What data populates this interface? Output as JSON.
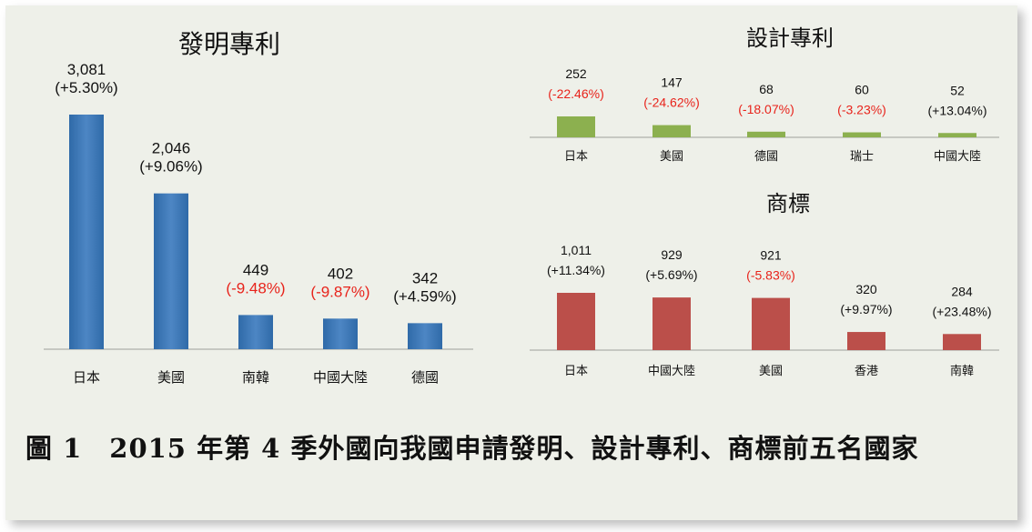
{
  "caption": "圖 1　2015 年第 4 季外國向我國申請發明、設計專利、商標前五名國家",
  "colors": {
    "invention_bar": "#3c74b1",
    "design_bar": "#8cb04f",
    "trademark_bar": "#bb4f4a",
    "negative_text": "#e8231b",
    "positive_text": "#111111"
  },
  "chart_data": [
    {
      "type": "bar",
      "title": "發明專利",
      "categories": [
        "日本",
        "美國",
        "南韓",
        "中國大陸",
        "德國"
      ],
      "values": [
        3081,
        2046,
        449,
        402,
        342
      ],
      "value_labels": [
        "3,081",
        "2,046",
        "449",
        "402",
        "342"
      ],
      "changes": [
        "(+5.30%)",
        "(+9.06%)",
        "(-9.48%)",
        "(-9.87%)",
        "(+4.59%)"
      ],
      "negative": [
        false,
        false,
        true,
        true,
        false
      ],
      "ylim": [
        0,
        3081
      ]
    },
    {
      "type": "bar",
      "title": "設計專利",
      "categories": [
        "日本",
        "美國",
        "德國",
        "瑞士",
        "中國大陸"
      ],
      "values": [
        252,
        147,
        68,
        60,
        52
      ],
      "value_labels": [
        "252",
        "147",
        "68",
        "60",
        "52"
      ],
      "changes": [
        "(-22.46%)",
        "(-24.62%)",
        "(-18.07%)",
        "(-3.23%)",
        "(+13.04%)"
      ],
      "negative": [
        true,
        true,
        true,
        true,
        false
      ],
      "ylim": [
        0,
        1400
      ]
    },
    {
      "type": "bar",
      "title": "商標",
      "categories": [
        "日本",
        "中國大陸",
        "美國",
        "香港",
        "南韓"
      ],
      "values": [
        1011,
        929,
        921,
        320,
        284
      ],
      "value_labels": [
        "1,011",
        "929",
        "921",
        "320",
        "284"
      ],
      "changes": [
        "(+11.34%)",
        "(+5.69%)",
        "(-5.83%)",
        "(+9.97%)",
        "(+23.48%)"
      ],
      "negative": [
        false,
        false,
        true,
        false,
        false
      ],
      "ylim": [
        0,
        1011
      ]
    }
  ]
}
